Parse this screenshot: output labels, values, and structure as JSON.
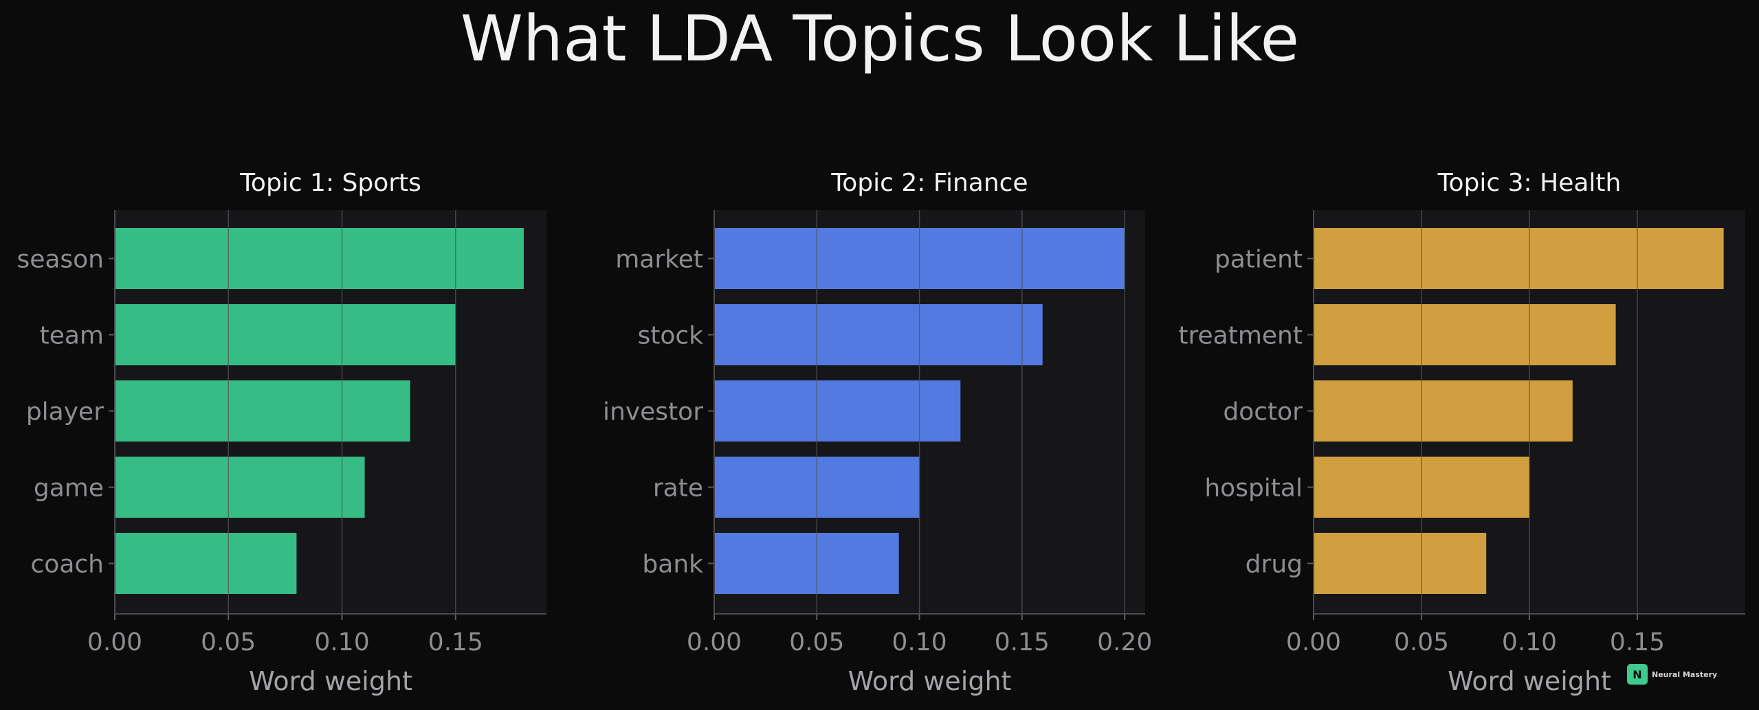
{
  "title": "What LDA Topics Look Like",
  "brand": {
    "initial": "N",
    "name": "Neural Mastery",
    "color": "#3ecb8d"
  },
  "colors": {
    "background": "#0b0b0c",
    "panel": "#161618",
    "grid": "#55555a",
    "text": "#f2f2f2",
    "muted": "#8d8d92"
  },
  "chart_data": [
    {
      "type": "bar",
      "orientation": "horizontal",
      "title": "Topic 1: Sports",
      "xlabel": "Word weight",
      "ylabel": "",
      "categories": [
        "season",
        "team",
        "player",
        "game",
        "coach"
      ],
      "values": [
        0.18,
        0.15,
        0.13,
        0.11,
        0.08
      ],
      "xlim": [
        0,
        0.19
      ],
      "xticks": [
        0.0,
        0.05,
        0.1,
        0.15
      ],
      "xtick_labels": [
        "0.00",
        "0.05",
        "0.10",
        "0.15"
      ],
      "color": "#36bd85",
      "grid": true
    },
    {
      "type": "bar",
      "orientation": "horizontal",
      "title": "Topic 2: Finance",
      "xlabel": "Word weight",
      "ylabel": "",
      "categories": [
        "market",
        "stock",
        "investor",
        "rate",
        "bank"
      ],
      "values": [
        0.2,
        0.16,
        0.12,
        0.1,
        0.09
      ],
      "xlim": [
        0,
        0.21
      ],
      "xticks": [
        0.0,
        0.05,
        0.1,
        0.15,
        0.2
      ],
      "xtick_labels": [
        "0.00",
        "0.05",
        "0.10",
        "0.15",
        "0.20"
      ],
      "color": "#527ae0",
      "grid": true
    },
    {
      "type": "bar",
      "orientation": "horizontal",
      "title": "Topic 3: Health",
      "xlabel": "Word weight",
      "ylabel": "",
      "categories": [
        "patient",
        "treatment",
        "doctor",
        "hospital",
        "drug"
      ],
      "values": [
        0.19,
        0.14,
        0.12,
        0.1,
        0.08
      ],
      "xlim": [
        0,
        0.2
      ],
      "xticks": [
        0.0,
        0.05,
        0.1,
        0.15
      ],
      "xtick_labels": [
        "0.00",
        "0.05",
        "0.10",
        "0.15"
      ],
      "color": "#d19f3f",
      "grid": true
    }
  ]
}
